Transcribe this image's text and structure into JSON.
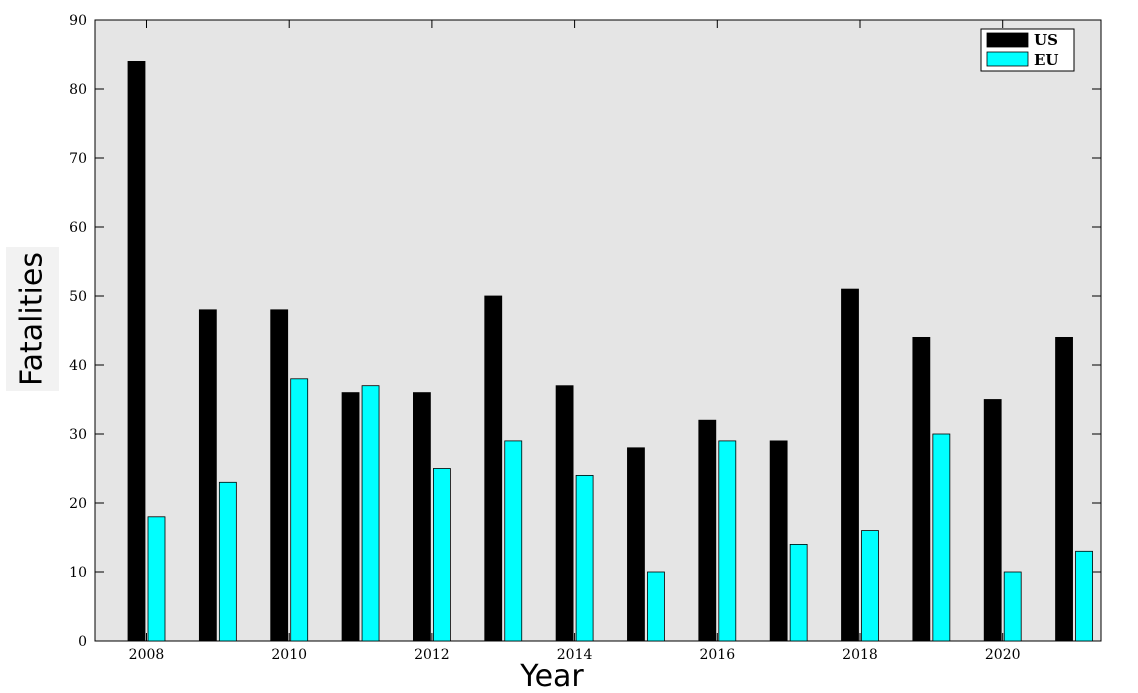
{
  "chart_data": {
    "type": "bar",
    "title": "",
    "xlabel": "Year",
    "ylabel": "Fatalities",
    "ylim": [
      0,
      90
    ],
    "yticks": [
      0,
      10,
      20,
      30,
      40,
      50,
      60,
      70,
      80,
      90
    ],
    "xtick_labels": [
      "2008",
      "2010",
      "2012",
      "2014",
      "2016",
      "2018",
      "2020"
    ],
    "categories": [
      "2008",
      "2009",
      "2010",
      "2011",
      "2012",
      "2013",
      "2014",
      "2015",
      "2016",
      "2017",
      "2018",
      "2019",
      "2020",
      "2021"
    ],
    "series": [
      {
        "name": "US",
        "color": "#000000",
        "values": [
          84,
          48,
          48,
          36,
          36,
          50,
          37,
          28,
          32,
          29,
          51,
          44,
          35,
          44
        ]
      },
      {
        "name": "EU",
        "color": "#00ffff",
        "values": [
          18,
          23,
          38,
          37,
          25,
          29,
          24,
          10,
          29,
          14,
          16,
          30,
          10,
          13
        ]
      }
    ],
    "legend_position": "top-right",
    "grid": false,
    "plot_background": "#e5e5e5"
  }
}
